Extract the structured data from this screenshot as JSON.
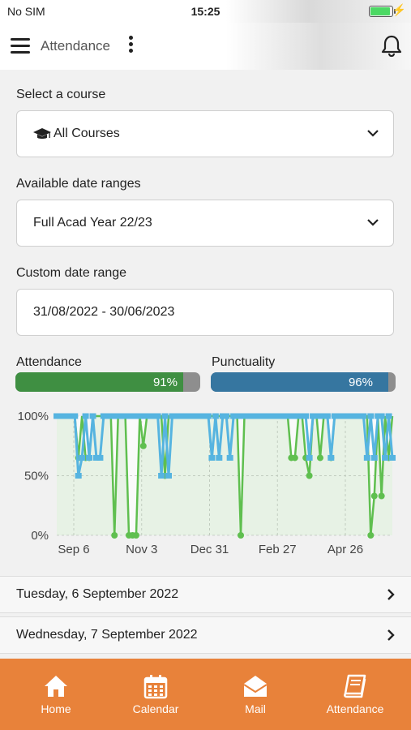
{
  "status_bar": {
    "carrier": "No SIM",
    "time": "15:25",
    "battery_icon": "battery-charging-icon"
  },
  "header": {
    "title": "Attendance",
    "menu_icon": "hamburger-icon",
    "more_icon": "kebab-icon",
    "notification_icon": "bell-icon"
  },
  "course": {
    "label": "Select a course",
    "value": "All Courses",
    "icon": "graduation-cap-icon"
  },
  "date_ranges": {
    "label": "Available date ranges",
    "value": "Full Acad Year 22/23"
  },
  "custom_range": {
    "label": "Custom date range",
    "value": "31/08/2022 - 30/06/2023"
  },
  "attendance": {
    "label": "Attendance",
    "percent_text": "91%",
    "value": 0.91,
    "color": "#3f8f42"
  },
  "punctuality": {
    "label": "Punctuality",
    "percent_text": "96%",
    "value": 0.96,
    "color": "#3676a0"
  },
  "chart_data": {
    "type": "line",
    "y_tick_labels": [
      "100%",
      "50%",
      "0%"
    ],
    "x_tick_labels": [
      "Sep 6",
      "Nov 3",
      "Dec 31",
      "Feb 27",
      "Apr 26"
    ],
    "ylim": [
      0,
      100
    ],
    "grid": true,
    "series": [
      {
        "color": "#5fbf4f",
        "values": [
          100,
          100,
          100,
          100,
          100,
          100,
          65,
          100,
          65,
          65,
          100,
          100,
          100,
          100,
          100,
          100,
          0,
          100,
          100,
          100,
          0,
          0,
          0,
          100,
          75,
          100,
          100,
          100,
          100,
          100,
          50,
          100,
          100,
          100,
          100,
          100,
          100,
          100,
          100,
          100,
          100,
          100,
          100,
          100,
          100,
          100,
          100,
          100,
          100,
          100,
          100,
          0,
          100,
          100,
          100,
          100,
          100,
          100,
          100,
          100,
          100,
          100,
          100,
          100,
          100,
          65,
          65,
          100,
          100,
          65,
          50,
          100,
          100,
          65,
          100,
          100,
          65,
          100,
          100,
          100,
          100,
          100,
          100,
          100,
          100,
          100,
          100,
          0,
          33,
          100,
          33,
          100,
          65,
          100
        ]
      },
      {
        "color": "#56b4e0",
        "values": [
          100,
          100,
          100,
          100,
          100,
          100,
          50,
          65,
          100,
          65,
          100,
          65,
          65,
          100,
          100,
          100,
          100,
          100,
          100,
          100,
          100,
          100,
          100,
          100,
          100,
          100,
          100,
          100,
          100,
          50,
          100,
          50,
          100,
          100,
          100,
          100,
          100,
          100,
          100,
          100,
          100,
          100,
          100,
          65,
          100,
          65,
          100,
          100,
          65,
          100,
          100,
          100,
          100,
          100,
          100,
          100,
          100,
          100,
          100,
          100,
          100,
          100,
          100,
          100,
          100,
          100,
          100,
          100,
          100,
          100,
          65,
          100,
          100,
          100,
          100,
          100,
          65,
          100,
          100,
          100,
          100,
          100,
          100,
          100,
          100,
          100,
          65,
          100,
          65,
          100,
          100,
          65,
          100,
          65
        ]
      }
    ]
  },
  "date_list": [
    {
      "label": "Tuesday, 6 September 2022"
    },
    {
      "label": "Wednesday, 7 September 2022"
    }
  ],
  "tabbar": {
    "items": [
      {
        "label": "Home",
        "icon": "home-icon"
      },
      {
        "label": "Calendar",
        "icon": "calendar-icon"
      },
      {
        "label": "Mail",
        "icon": "mail-icon"
      },
      {
        "label": "Attendance",
        "icon": "book-icon"
      }
    ],
    "color": "#e8823a"
  }
}
